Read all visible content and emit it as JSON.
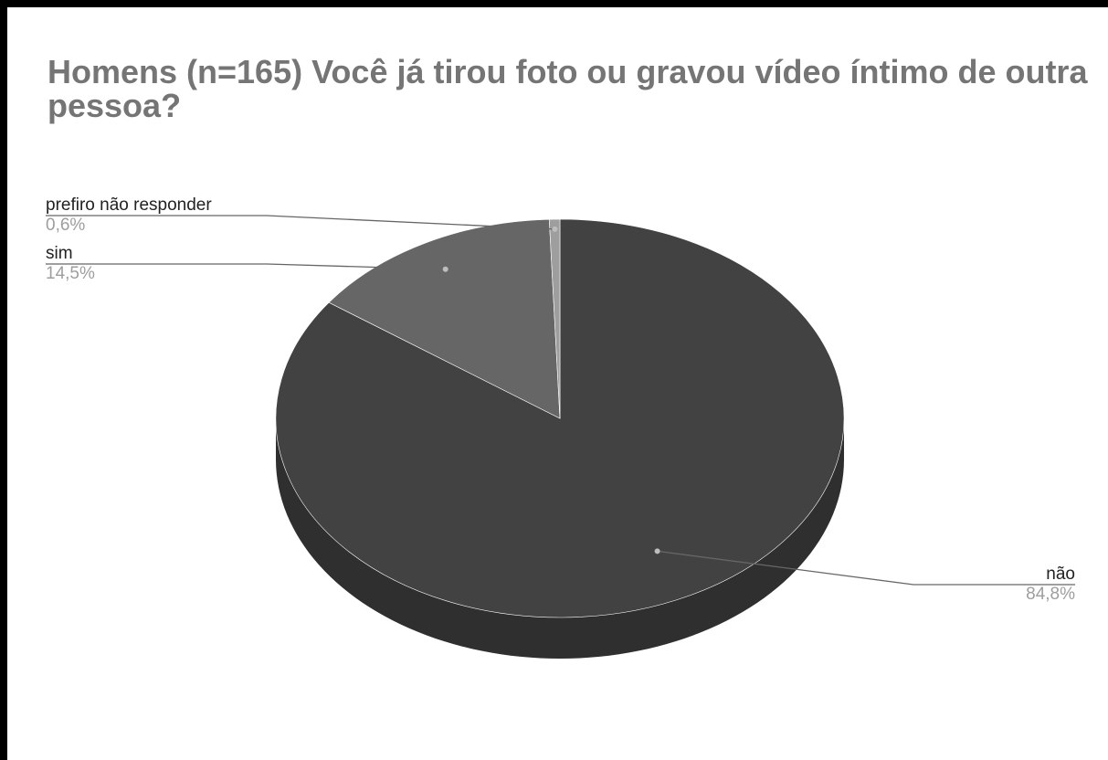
{
  "chart_data": {
    "type": "pie",
    "style": "3d",
    "title": "Homens (n=165) Você já tirou foto ou gravou vídeo íntimo de outra pessoa?",
    "legend": "labeled",
    "slices": [
      {
        "label": "não",
        "value": 84.8,
        "value_label": "84,8%",
        "color": "#424242",
        "side_color": "#2f2f2f"
      },
      {
        "label": "sim",
        "value": 14.5,
        "value_label": "14,5%",
        "color": "#666666",
        "side_color": "#4a4a4a"
      },
      {
        "label": "prefiro não responder",
        "value": 0.6,
        "value_label": "0,6%",
        "color": "#9e9e9e",
        "side_color": "#7a7a7a"
      }
    ]
  }
}
